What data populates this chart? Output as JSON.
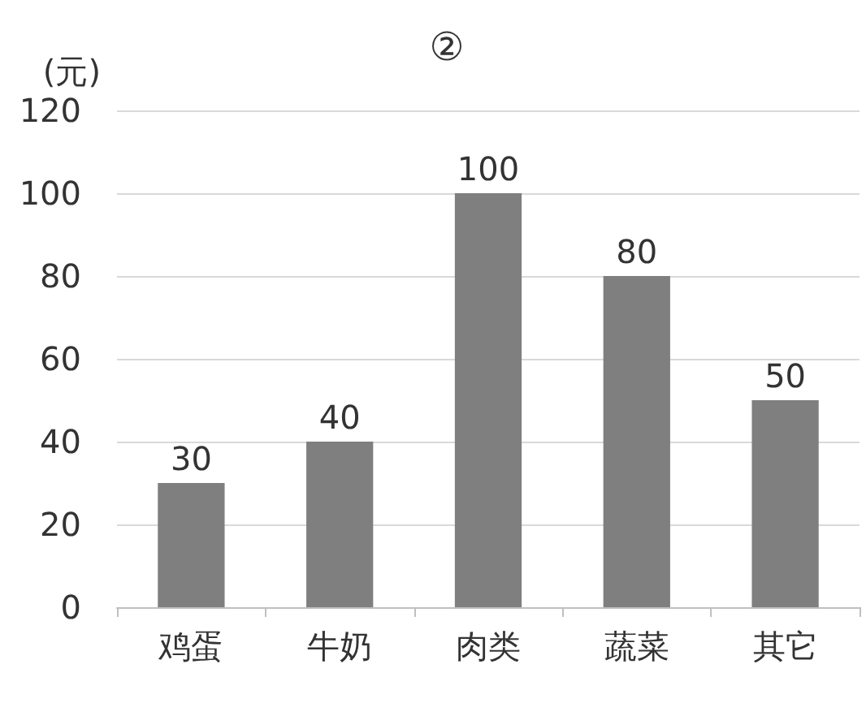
{
  "chart_data": {
    "type": "bar",
    "title": "②",
    "ylabel": "(元)",
    "categories": [
      "鸡蛋",
      "牛奶",
      "肉类",
      "蔬菜",
      "其它"
    ],
    "values": [
      30,
      40,
      100,
      80,
      50
    ],
    "color": "#7f7f7f",
    "ylim": [
      0,
      120
    ],
    "yticks": [
      0,
      20,
      40,
      60,
      80,
      100,
      120
    ],
    "grid": "y",
    "data_labels": true
  }
}
